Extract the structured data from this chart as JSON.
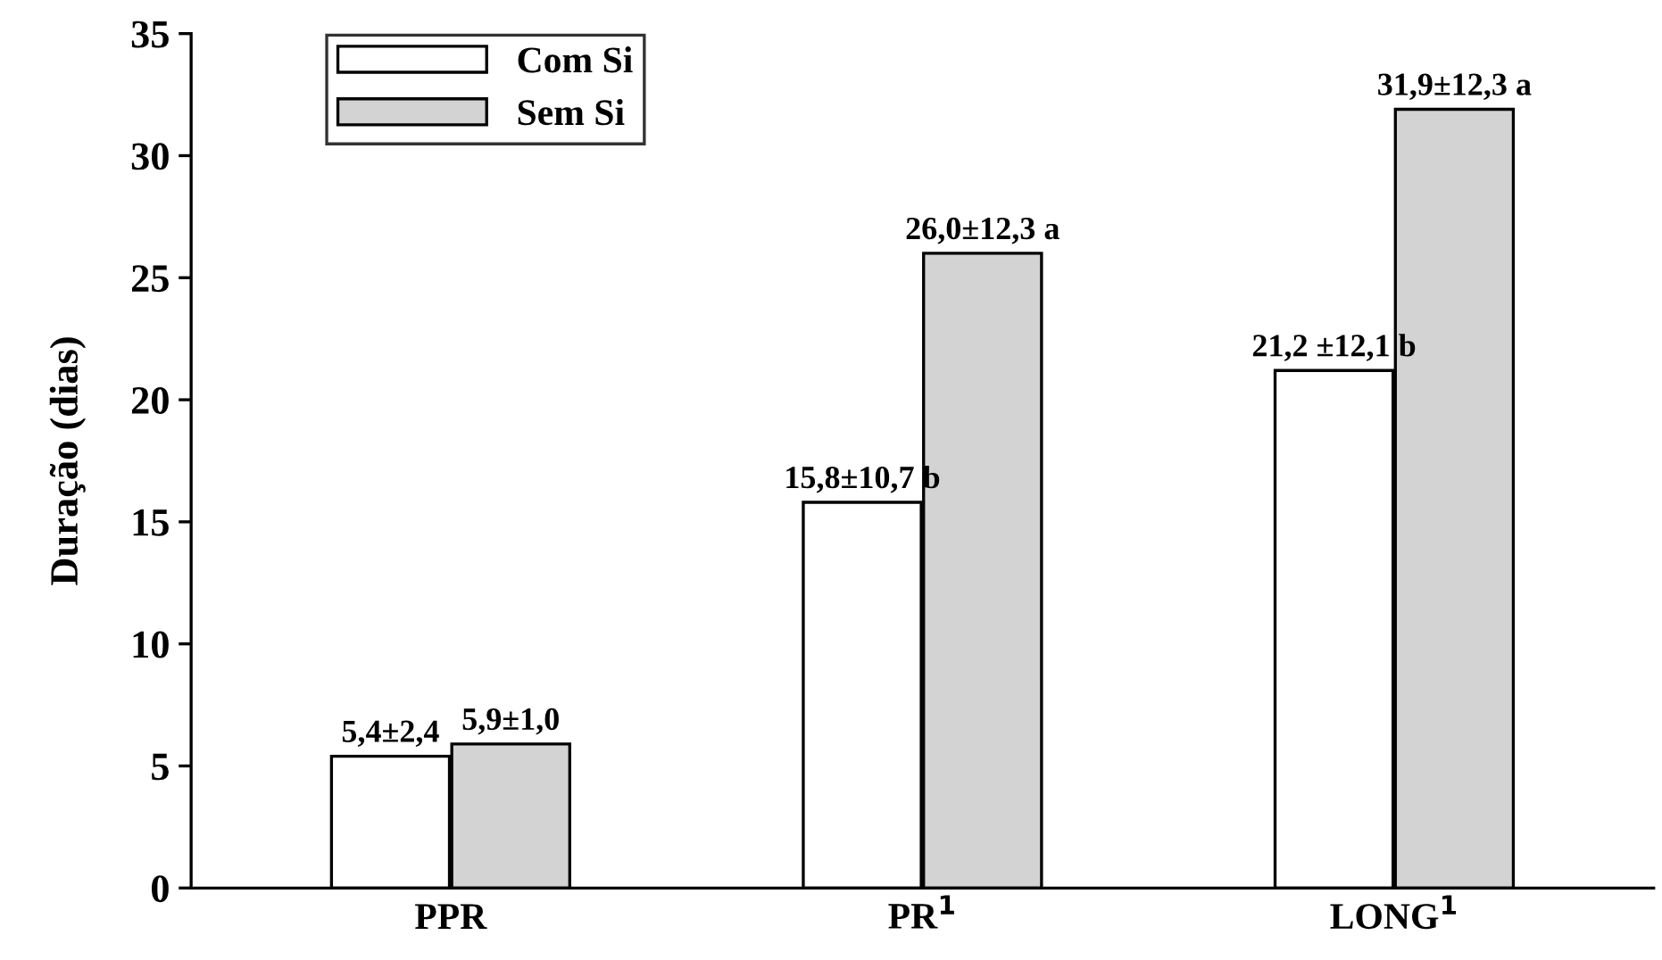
{
  "chart_data": {
    "type": "bar",
    "ylabel": "Duração (dias)",
    "categories": [
      "PPR",
      "PR$^{1}$",
      "LONG$^{1}$"
    ],
    "series": [
      {
        "name": "Com Si",
        "color": "#ffffff",
        "values": [
          5.4,
          15.8,
          21.2
        ],
        "value_labels": [
          "5,4±2,4",
          "15,8±10,7 b",
          "21,2 ±12,1 b"
        ]
      },
      {
        "name": "Sem Si",
        "color": "#d3d3d3",
        "values": [
          5.9,
          26.0,
          31.9
        ],
        "value_labels": [
          "5,9±1,0",
          "26,0±12,3 a",
          "31,9±12,3 a"
        ]
      }
    ],
    "ylim": [
      0,
      35
    ],
    "yticks": [
      0,
      5,
      10,
      15,
      20,
      25,
      30,
      35
    ],
    "grid": false,
    "legend": "top left"
  }
}
